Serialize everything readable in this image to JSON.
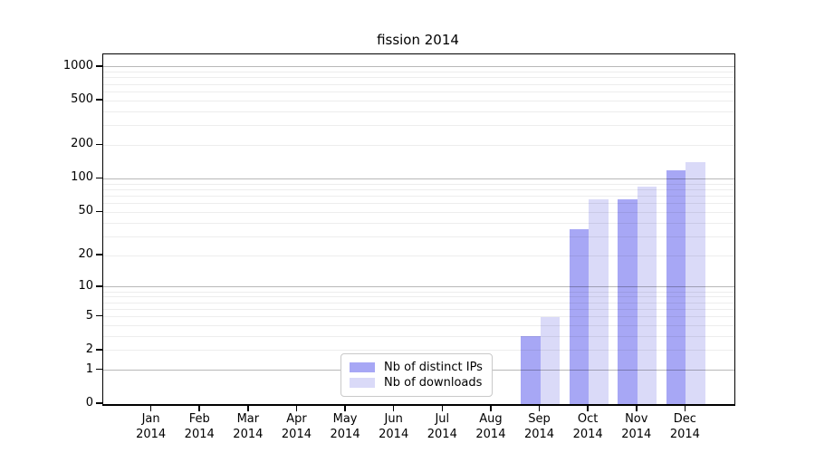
{
  "title": "fission 2014",
  "legend": {
    "entries": [
      {
        "key": "distinct-ips",
        "label": "Nb of distinct IPs",
        "color": "#a7a7f5"
      },
      {
        "key": "downloads",
        "label": "Nb of downloads",
        "color": "#dadaf8"
      }
    ]
  },
  "chart_data": {
    "type": "bar",
    "title": "fission 2014",
    "x_year": "2014",
    "categories": [
      "Jan",
      "Feb",
      "Mar",
      "Apr",
      "May",
      "Jun",
      "Jul",
      "Aug",
      "Sep",
      "Oct",
      "Nov",
      "Dec"
    ],
    "series": [
      {
        "name": "Nb of distinct IPs",
        "key": "distinct-ips",
        "color": "#a7a7f5",
        "values": [
          0,
          0,
          0,
          0,
          0,
          0,
          0,
          0,
          3,
          35,
          65,
          120
        ]
      },
      {
        "name": "Nb of downloads",
        "key": "downloads",
        "color": "#dadaf8",
        "values": [
          0,
          0,
          0,
          0,
          0,
          0,
          0,
          0,
          5,
          65,
          85,
          140
        ]
      }
    ],
    "y_scale": "log10(1+v)",
    "y_ticks": [
      0,
      1,
      2,
      5,
      10,
      20,
      50,
      100,
      200,
      500,
      1000
    ],
    "major_gridlines": [
      1,
      10,
      100,
      1000
    ],
    "minor_gridline_bases": [
      1,
      10,
      100
    ],
    "ylim": [
      0,
      1300
    ],
    "grid": true,
    "legend_position": "lower center"
  }
}
